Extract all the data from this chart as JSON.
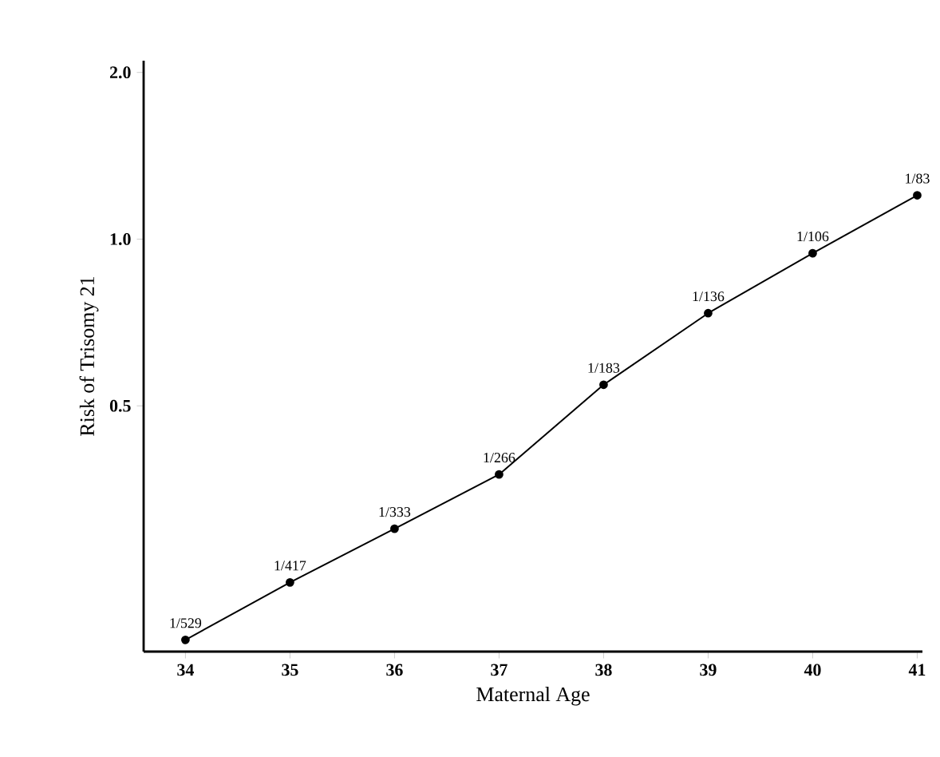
{
  "chart_data": {
    "type": "line",
    "xlabel": "Maternal Age",
    "ylabel": "Risk of Trisomy 21",
    "x": [
      34,
      35,
      36,
      37,
      38,
      39,
      40,
      41
    ],
    "values": [
      0.189,
      0.24,
      0.3,
      0.376,
      0.546,
      0.735,
      0.943,
      1.2
    ],
    "value_labels": [
      "1/529",
      "1/417",
      "1/333",
      "1/266",
      "1/183",
      "1/136",
      "1/106",
      "1/83"
    ],
    "color": "#000000",
    "marker": "circle",
    "line_style": "solid",
    "log": "y",
    "xlim": [
      33.6,
      41.05
    ],
    "ylim": [
      0.18,
      2.1
    ],
    "xticks": [
      34,
      35,
      36,
      37,
      38,
      39,
      40,
      41
    ],
    "yticks": [
      {
        "value": 0.5,
        "label": "0.5"
      },
      {
        "value": 1.0,
        "label": "1.0"
      },
      {
        "value": 2.0,
        "label": "2.0"
      }
    ]
  }
}
